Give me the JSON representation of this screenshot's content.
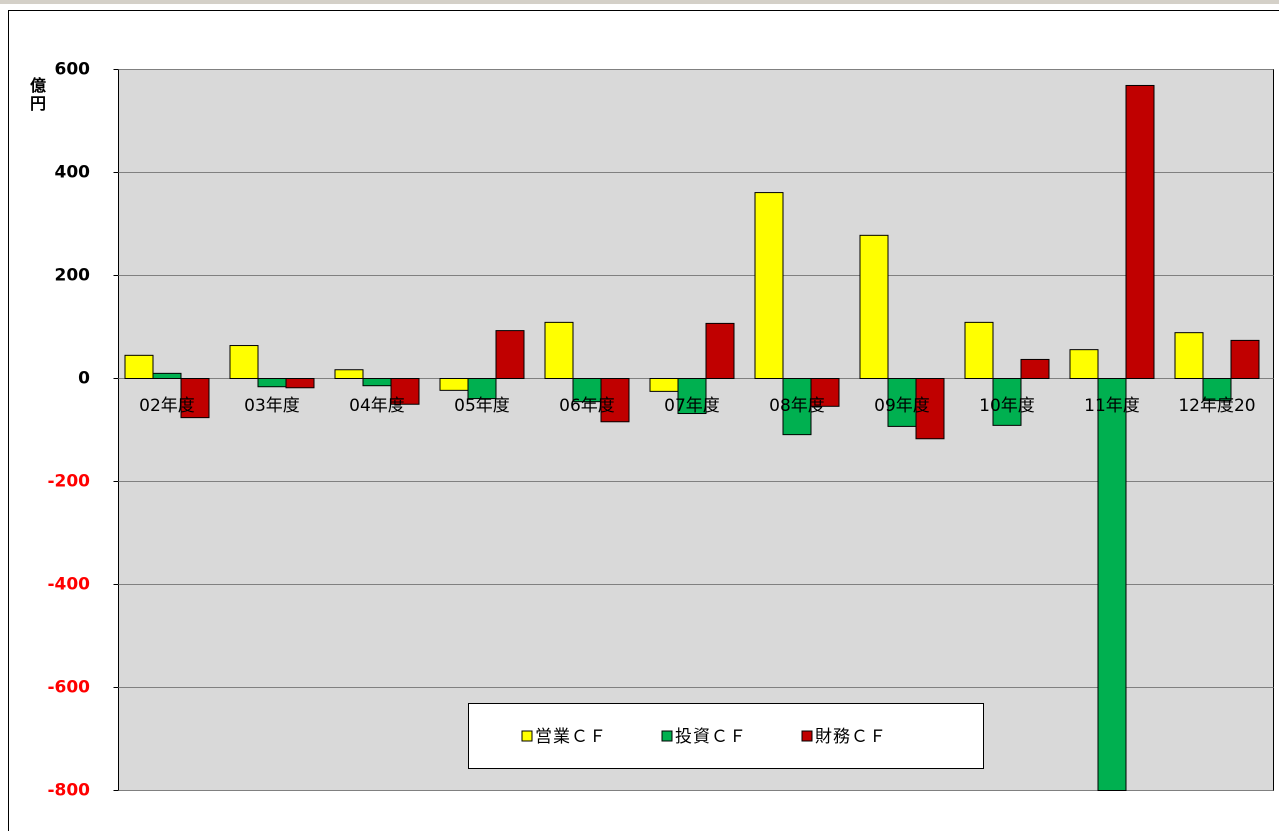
{
  "chart_data": {
    "type": "bar",
    "y_axis_label": "億円",
    "categories": [
      "02年度",
      "03年度",
      "04年度",
      "05年度",
      "06年度",
      "07年度",
      "08年度",
      "09年度",
      "10年度",
      "11年度",
      "12年度20"
    ],
    "series": [
      {
        "name": "営業ＣＦ",
        "color": "#ffff00",
        "values": [
          45,
          64,
          17,
          -23,
          109,
          -25,
          361,
          278,
          109,
          56,
          89
        ]
      },
      {
        "name": "投資ＣＦ",
        "color": "#00b050",
        "values": [
          10,
          -16,
          -14,
          -39,
          -45,
          -68,
          -109,
          -93,
          -91,
          -800,
          -43
        ]
      },
      {
        "name": "財務ＣＦ",
        "color": "#c00000",
        "values": [
          -76,
          -18,
          -50,
          93,
          -84,
          107,
          -54,
          -117,
          37,
          569,
          74
        ]
      }
    ],
    "ylim": [
      -800,
      600
    ],
    "yticks": [
      -800,
      -600,
      -400,
      -200,
      0,
      200,
      400,
      600
    ],
    "grid": true,
    "negative_tick_color": "#ff0000",
    "legend": "bottom"
  }
}
